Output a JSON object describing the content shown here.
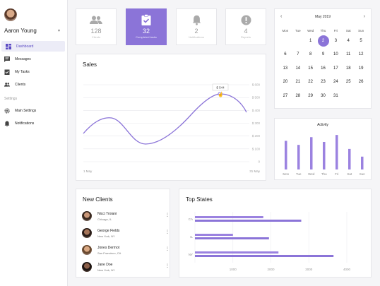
{
  "user": {
    "name": "Aaron Young"
  },
  "nav": {
    "items": [
      {
        "label": "Dashboard",
        "icon": "dashboard-icon"
      },
      {
        "label": "Messages",
        "icon": "messages-icon"
      },
      {
        "label": "My Tasks",
        "icon": "tasks-icon"
      },
      {
        "label": "Clients",
        "icon": "clients-icon"
      }
    ],
    "settings_label": "Settings",
    "settings_items": [
      {
        "label": "Main Settings",
        "icon": "gear-icon"
      },
      {
        "label": "Notifications",
        "icon": "bell-icon"
      }
    ]
  },
  "stats": [
    {
      "value": "128",
      "label": "Clients",
      "icon": "people-icon"
    },
    {
      "value": "32",
      "label": "Completed tasks",
      "icon": "clipboard-check-icon"
    },
    {
      "value": "2",
      "label": "Notifications",
      "icon": "bell-icon"
    },
    {
      "value": "4",
      "label": "Reports",
      "icon": "alert-icon"
    }
  ],
  "calendar": {
    "month": "May 2019",
    "dow": [
      "Mon",
      "Tue",
      "Wed",
      "Thu",
      "Fri",
      "Sat",
      "Sun"
    ],
    "weeks": [
      [
        "",
        "",
        "1",
        "2",
        "3",
        "4",
        "5"
      ],
      [
        "6",
        "7",
        "8",
        "9",
        "10",
        "11",
        "12"
      ],
      [
        "13",
        "14",
        "15",
        "16",
        "17",
        "18",
        "19"
      ],
      [
        "20",
        "21",
        "22",
        "23",
        "24",
        "25",
        "26"
      ],
      [
        "27",
        "28",
        "29",
        "30",
        "31",
        "",
        ""
      ]
    ],
    "selected": "2"
  },
  "sales": {
    "title": "Sales",
    "tooltip": "$ 544",
    "x_start": "1 May",
    "x_end": "31 May",
    "y_ticks": [
      "$ 600",
      "$ 500",
      "$ 400",
      "$ 300",
      "$ 200",
      "$ 100",
      "0"
    ]
  },
  "activity": {
    "title": "Activity",
    "days": [
      "Mon",
      "Tue",
      "Wed",
      "Thu",
      "Fri",
      "Sat",
      "Sun"
    ],
    "values": [
      0.78,
      0.67,
      0.88,
      0.75,
      0.94,
      0.56,
      0.35
    ]
  },
  "new_clients": {
    "title": "New Clients",
    "items": [
      {
        "name": "Nicci Troiani",
        "location": "Chicago, IL"
      },
      {
        "name": "George Fields",
        "location": "New York, NY"
      },
      {
        "name": "Jones Dermot",
        "location": "San Francisco, CA"
      },
      {
        "name": "Jane Doe",
        "location": "New York, NY"
      }
    ]
  },
  "top_states": {
    "title": "Top States",
    "states": [
      "CA",
      "IL",
      "NY"
    ],
    "x_ticks": [
      "1000",
      "2000",
      "3000",
      "4000"
    ]
  },
  "colors": {
    "accent": "#8b74d8",
    "bar": "#9b82e0"
  },
  "chart_data": [
    {
      "type": "line",
      "title": "Sales",
      "x": [
        "1 May",
        "31 May"
      ],
      "y_ticks": [
        "$ 600",
        "$ 500",
        "$ 400",
        "$ 300",
        "$ 200",
        "$ 100",
        "0"
      ],
      "ylim": [
        0,
        600
      ]
    },
    {
      "type": "bar",
      "title": "Activity",
      "categories": [
        "Mon",
        "Tue",
        "Wed",
        "Thu",
        "Fri",
        "Sat",
        "Sun"
      ],
      "values": [
        0.78,
        0.67,
        0.88,
        0.75,
        0.94,
        0.56,
        0.35
      ]
    },
    {
      "type": "bar",
      "title": "Top States",
      "categories": [
        "CA",
        "IL",
        "NY"
      ],
      "series": [
        {
          "values": [
            1800,
            1000,
            2200
          ]
        },
        {
          "values": [
            2800,
            1950,
            3650
          ]
        }
      ],
      "xlim": [
        0,
        4000
      ]
    }
  ]
}
